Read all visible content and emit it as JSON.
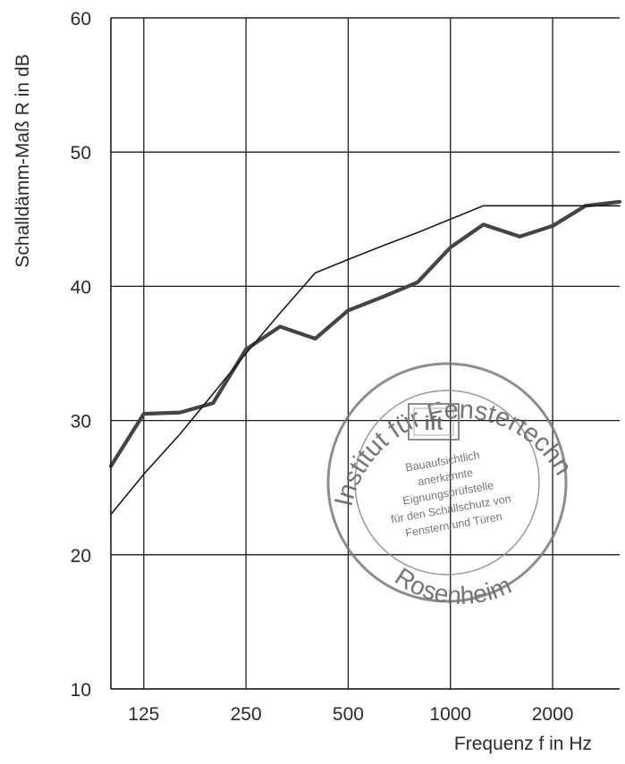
{
  "chart_data": {
    "type": "line",
    "title": "",
    "xlabel": "Frequenz f in Hz",
    "ylabel": "Schalldämm-Maß R in dB",
    "xscale": "log",
    "xlim": [
      100,
      3150
    ],
    "ylim": [
      10,
      60
    ],
    "xticks": [
      125,
      250,
      500,
      1000,
      2000
    ],
    "xtick_labels": [
      "125",
      "250",
      "500",
      "1000",
      "2000"
    ],
    "yticks": [
      10,
      20,
      30,
      40,
      50,
      60
    ],
    "ytick_labels": [
      "10",
      "20",
      "30",
      "40",
      "50",
      "60"
    ],
    "grid": true,
    "x": [
      100,
      125,
      160,
      200,
      250,
      315,
      400,
      500,
      630,
      800,
      1000,
      1250,
      1600,
      2000,
      2500,
      3150
    ],
    "series": [
      {
        "name": "",
        "values": [
          26.6,
          30.5,
          30.6,
          31.3,
          35.3,
          37.0,
          36.1,
          38.2,
          39.2,
          40.3,
          42.9,
          44.6,
          43.7,
          44.5,
          46.0,
          46.3
        ],
        "color": "#444444",
        "style": "thick"
      },
      {
        "name": "",
        "values": [
          23.0,
          26.0,
          29.0,
          32.0,
          35.0,
          38.0,
          41.0,
          42.0,
          43.0,
          44.0,
          45.0,
          46.0,
          46.0,
          46.0,
          46.0,
          46.0
        ],
        "color": "#1a1a1a",
        "style": "thin"
      }
    ]
  },
  "stamp": {
    "ring_text_top": "Institut für Fenstertechnik e.V.",
    "ring_text_bottom": "Rosenheim",
    "logo_text": "ift",
    "inner_lines": [
      "Bauaufsichtlich",
      "anerkannte",
      "Eignungsprüfstelle",
      "für den Schallschutz von",
      "Fenstern und Türen"
    ],
    "color": "#6b6b6b"
  }
}
